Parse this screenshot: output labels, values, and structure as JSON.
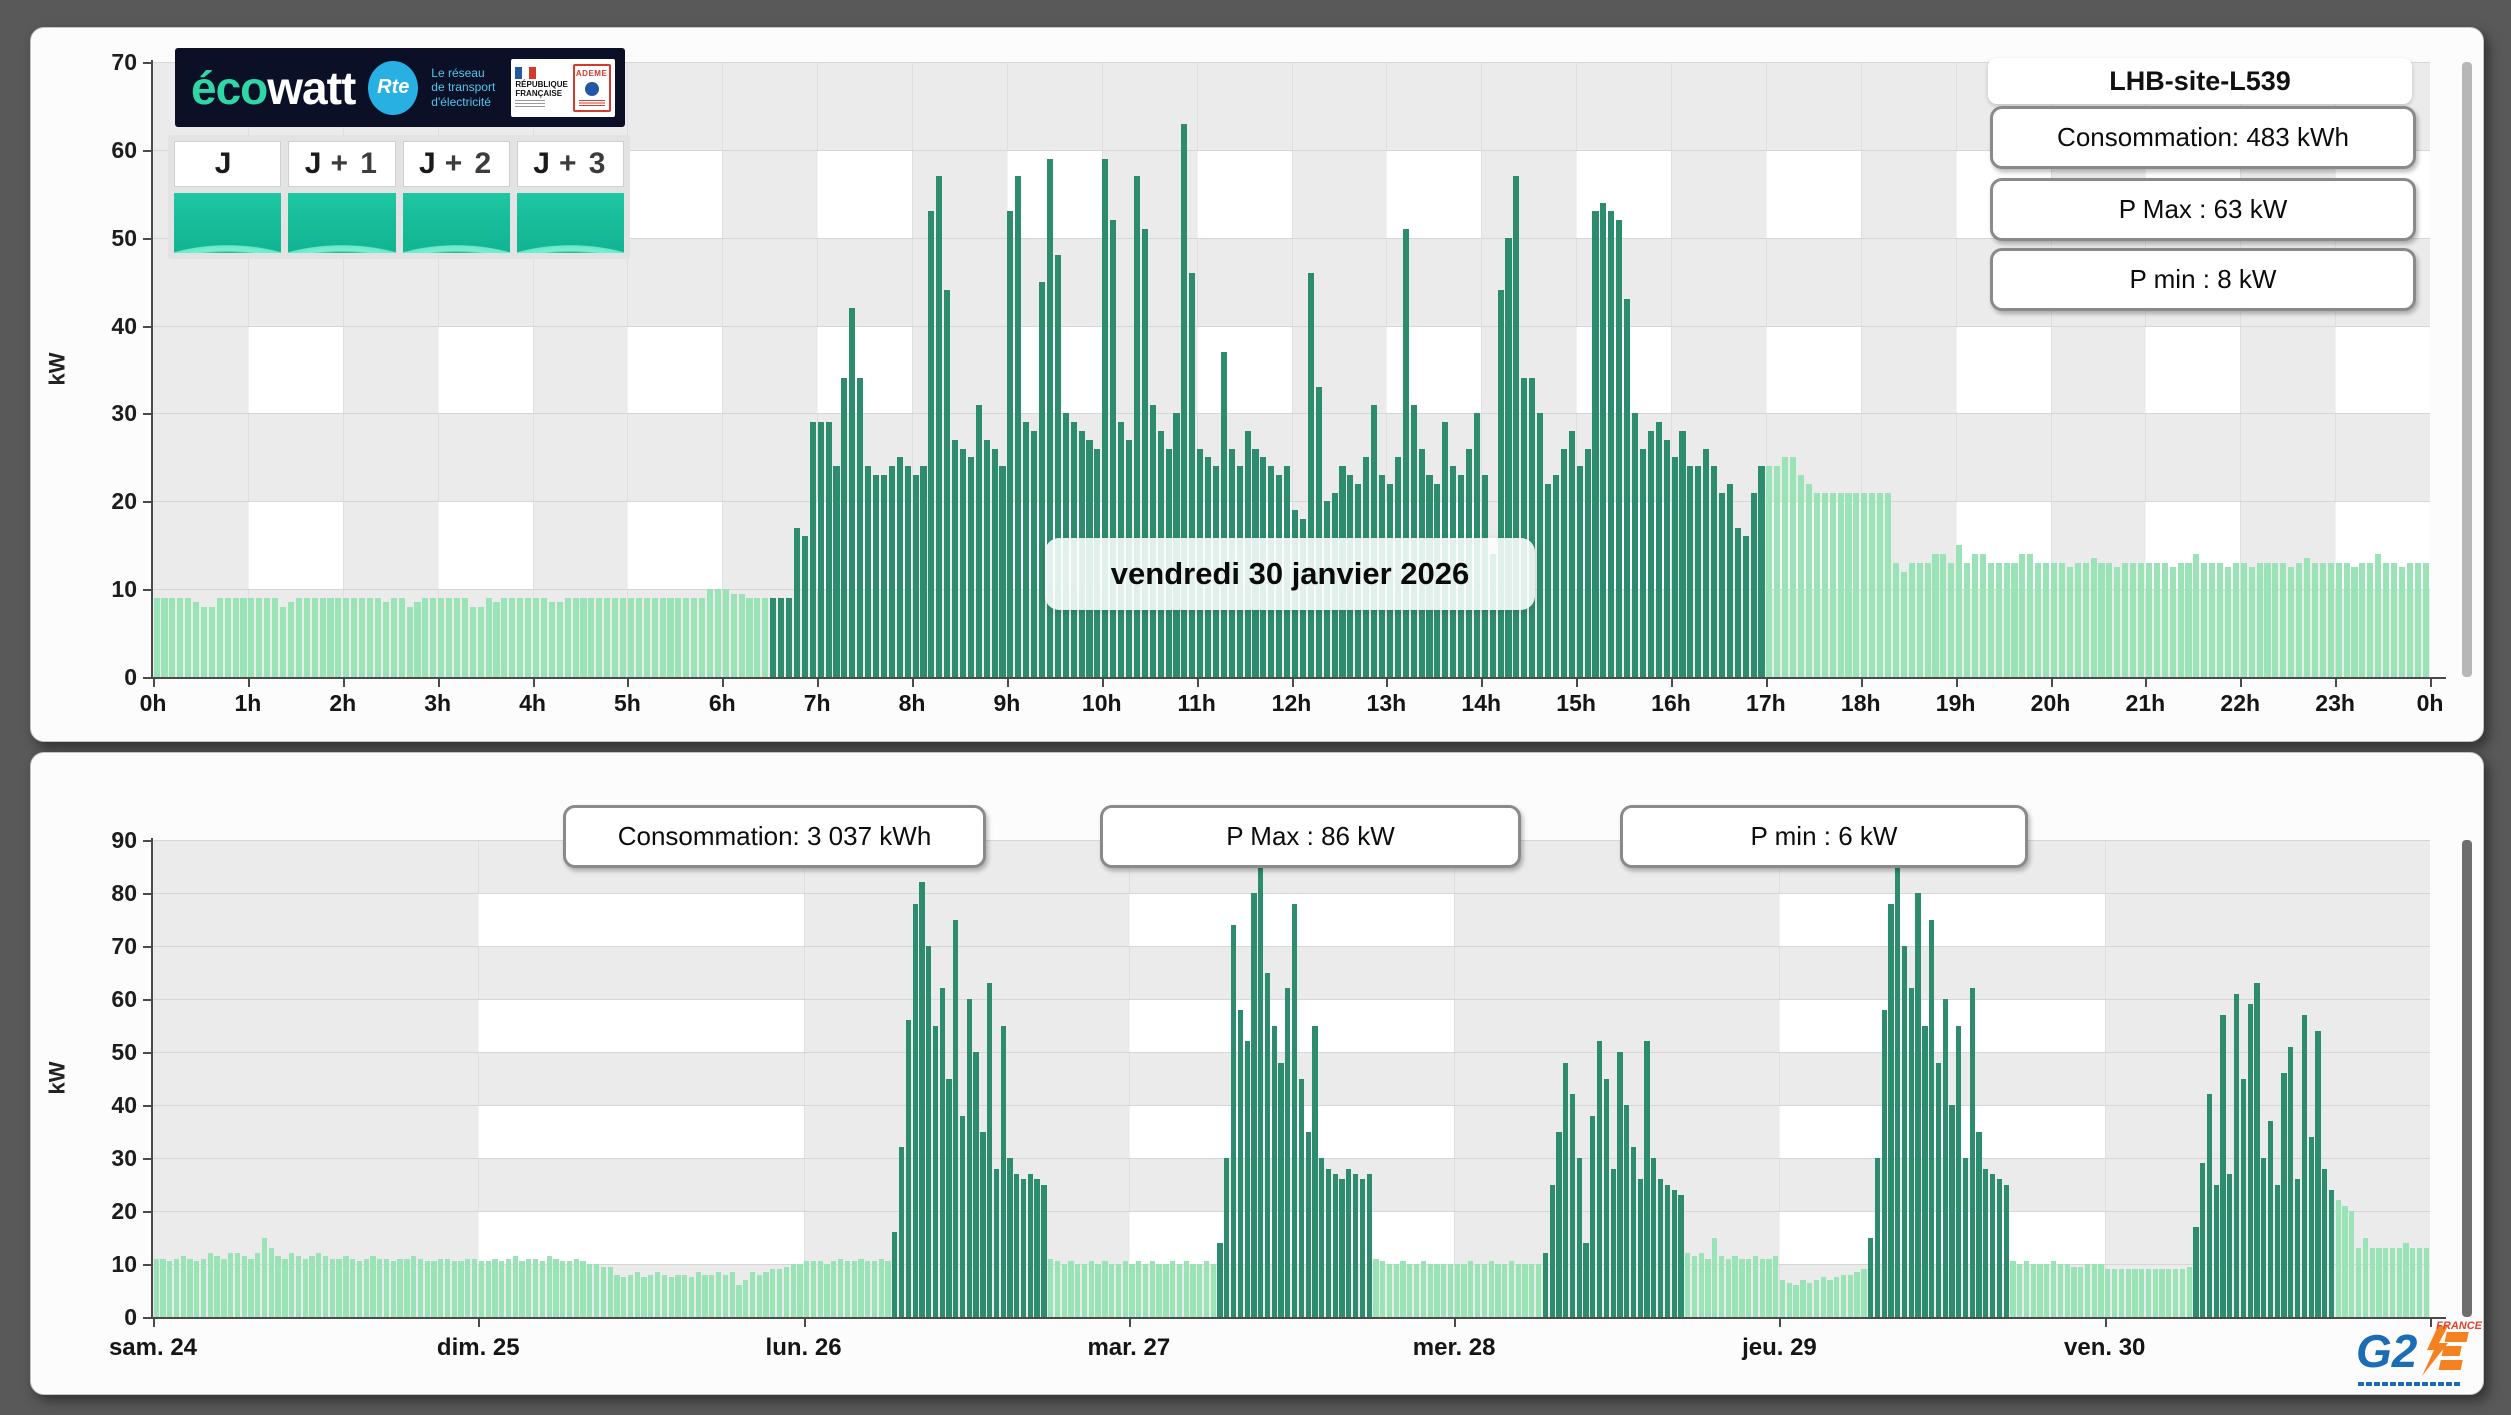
{
  "page": {
    "bg": "#595959"
  },
  "site_title": "LHB-site-L539",
  "logo": {
    "eco": "éco",
    "watt": "watt",
    "rte": "Rte",
    "rte_lines": [
      "Le réseau",
      "de transport",
      "d'électricité"
    ],
    "rf_line1": "RÉPUBLIQUE",
    "rf_line2": "FRANÇAISE",
    "ademe": "ADEME"
  },
  "tiles": [
    {
      "main": "J",
      "suffix": ""
    },
    {
      "main": "J",
      "suffix": "+ 1"
    },
    {
      "main": "J",
      "suffix": "+ 2"
    },
    {
      "main": "J",
      "suffix": "+ 3"
    }
  ],
  "g2e": {
    "g2": "G2",
    "france": "FRANCE"
  },
  "colors": {
    "light_bar": "#99e3b6",
    "dark_bar": "#2e8c6e",
    "plot_bg": "#ebebeb",
    "plot_alt": "#ffffff",
    "grid": "#d6d6d6",
    "vgrid": "rgba(0,0,0,0.05)",
    "axis": "#4a4a4a",
    "scroll_day": "#b7b7b7",
    "scroll_week": "#6e6e6e"
  },
  "chart_data": [
    {
      "type": "bar",
      "title": "LHB-site-L539",
      "date_label": "vendredi 30 janvier 2026",
      "stats": [
        "Consommation: 483 kWh",
        "P Max :  63 kW",
        "P min : 8 kW"
      ],
      "ylabel": "kW",
      "ylim": [
        0,
        70
      ],
      "ystep": 10,
      "x_labels": [
        "0h",
        "1h",
        "2h",
        "3h",
        "4h",
        "5h",
        "6h",
        "7h",
        "8h",
        "9h",
        "10h",
        "11h",
        "12h",
        "13h",
        "14h",
        "15h",
        "16h",
        "17h",
        "18h",
        "19h",
        "20h",
        "21h",
        "22h",
        "23h",
        "0h"
      ],
      "interval_minutes": 5,
      "dark_hours": [
        6.5,
        17
      ],
      "values": [
        [
          9,
          9,
          9,
          9,
          9,
          8.5,
          8,
          8,
          9,
          9,
          9,
          9
        ],
        [
          9,
          9,
          9,
          9,
          8,
          8.5,
          9,
          9,
          9,
          9,
          9,
          9
        ],
        [
          9,
          9,
          9,
          9,
          9,
          8.5,
          9,
          9,
          8,
          8.5,
          9,
          9
        ],
        [
          9,
          9,
          9,
          9,
          8,
          8,
          9,
          8.5,
          9,
          9,
          9,
          9
        ],
        [
          9,
          9,
          8.5,
          8.5,
          9,
          9,
          9,
          9,
          9,
          9,
          9,
          9
        ],
        [
          9,
          9,
          9,
          9,
          9,
          9,
          9,
          9,
          9,
          9,
          10,
          10
        ],
        [
          10,
          9.5,
          9.5,
          9,
          9,
          9,
          9,
          9,
          9,
          17,
          16,
          29
        ],
        [
          29,
          29,
          24,
          34,
          42,
          34,
          24,
          23,
          23,
          24,
          25,
          24
        ],
        [
          23,
          24,
          53,
          57,
          44,
          27,
          26,
          25,
          31,
          27,
          26,
          24
        ],
        [
          53,
          57,
          29,
          28,
          45,
          59,
          48,
          30,
          29,
          28,
          27,
          26
        ],
        [
          59,
          52,
          29,
          27,
          57,
          51,
          31,
          28,
          26,
          30,
          63,
          46
        ],
        [
          26,
          25,
          24,
          37,
          26,
          24,
          28,
          26,
          25,
          24,
          23,
          24
        ],
        [
          19,
          18,
          46,
          33,
          20,
          21,
          24,
          23,
          22,
          25,
          31,
          23
        ],
        [
          22,
          25,
          51,
          31,
          26,
          23,
          22,
          29,
          24,
          23,
          26,
          30
        ],
        [
          23,
          14,
          44,
          50,
          57,
          34,
          34,
          30,
          22,
          23,
          26,
          28
        ],
        [
          24,
          26,
          53,
          54,
          53,
          52,
          43,
          30,
          26,
          28,
          29,
          27
        ],
        [
          25,
          28,
          24,
          24,
          26,
          24,
          21,
          22,
          17,
          16,
          21,
          24
        ],
        [
          24,
          24,
          25,
          25,
          23,
          22,
          21,
          21,
          21,
          21,
          21,
          21
        ],
        [
          21,
          21,
          21,
          21,
          13,
          12,
          13,
          13,
          13,
          14,
          14,
          13
        ],
        [
          15,
          13,
          14,
          14,
          13,
          13,
          13,
          13,
          14,
          14,
          13,
          13
        ],
        [
          13,
          13,
          12.5,
          13,
          13,
          13.5,
          13,
          13,
          12.5,
          13,
          13,
          13
        ],
        [
          13,
          13,
          13,
          12.5,
          13,
          13,
          14,
          13,
          13,
          13,
          12.5,
          13
        ],
        [
          13,
          12.5,
          13,
          13,
          13,
          13,
          12.5,
          13,
          13.5,
          13,
          13,
          13
        ],
        [
          13,
          13,
          12.5,
          13,
          13,
          14,
          13,
          13,
          12.5,
          13,
          13,
          13
        ]
      ]
    },
    {
      "type": "bar",
      "stats": [
        "Consommation: 3 037 kWh",
        "P Max :  86 kW",
        "P min : 6 kW"
      ],
      "ylabel": "kW",
      "ylim": [
        0,
        90
      ],
      "ystep": 10,
      "interval_minutes": 30,
      "days": [
        {
          "label": "sam. 24",
          "dark_hours": null,
          "values": [
            11,
            11,
            10.5,
            11,
            11.5,
            11,
            10.5,
            11,
            12,
            11.5,
            11,
            12,
            12,
            11.5,
            11,
            12,
            15,
            13,
            11.5,
            11,
            12,
            11.5,
            11,
            11.5,
            12,
            11.5,
            11,
            11,
            11.5,
            11,
            10.5,
            11,
            11.5,
            11,
            11,
            10.5,
            11,
            11,
            11.5,
            11,
            10.5,
            10.5,
            11,
            11,
            10.5,
            10.5,
            11,
            11
          ]
        },
        {
          "label": "dim. 25",
          "dark_hours": null,
          "values": [
            10.5,
            10.5,
            11,
            10.5,
            11,
            11.5,
            10.5,
            11,
            11,
            10.5,
            11.5,
            11,
            10.5,
            10.5,
            11,
            10.5,
            10,
            10,
            9.5,
            9.5,
            8,
            7.5,
            8,
            8.5,
            7.5,
            8,
            8.5,
            8,
            7.5,
            8,
            8,
            7.5,
            8.5,
            8,
            8,
            8.5,
            8,
            8.5,
            6,
            7,
            8.5,
            8,
            8.5,
            9,
            9,
            9.5,
            10,
            10
          ]
        },
        {
          "label": "lun. 26",
          "dark_hours": [
            6.5,
            18
          ],
          "values": [
            10.5,
            10.5,
            10.5,
            10,
            10.5,
            11,
            10.5,
            10.5,
            11,
            10.5,
            10.5,
            11,
            10.5,
            16,
            32,
            56,
            78,
            82,
            70,
            55,
            62,
            45,
            75,
            38,
            60,
            50,
            35,
            63,
            28,
            55,
            30,
            27,
            26,
            27,
            26,
            25,
            11,
            10.5,
            10,
            10.5,
            10,
            10,
            10.5,
            10,
            10.5,
            10,
            10,
            10.5
          ]
        },
        {
          "label": "mar. 27",
          "dark_hours": [
            6.5,
            18
          ],
          "values": [
            10,
            10.5,
            10,
            10.5,
            10,
            10,
            10.5,
            10,
            10.5,
            10,
            10,
            10.5,
            10,
            14,
            30,
            74,
            58,
            52,
            80,
            86,
            65,
            55,
            48,
            62,
            78,
            45,
            35,
            55,
            30,
            28,
            27,
            26,
            28,
            27,
            26,
            27,
            11,
            10.5,
            10,
            10,
            10.5,
            10,
            10,
            10.5,
            10,
            10,
            10,
            10
          ]
        },
        {
          "label": "mer. 28",
          "dark_hours": [
            6.5,
            17
          ],
          "values": [
            10,
            10,
            10.5,
            10,
            10,
            10.5,
            10,
            10,
            10.5,
            10,
            10,
            10,
            10,
            12,
            25,
            35,
            48,
            42,
            30,
            14,
            38,
            52,
            45,
            28,
            50,
            40,
            32,
            26,
            52,
            30,
            26,
            25,
            24,
            23,
            12,
            11.5,
            12,
            11,
            15,
            11.5,
            11,
            11.5,
            11,
            11,
            11.5,
            11,
            11,
            11.5
          ]
        },
        {
          "label": "jeu. 29",
          "dark_hours": [
            6.5,
            17
          ],
          "values": [
            7,
            6.5,
            6,
            7,
            6.5,
            7,
            7.5,
            7,
            7.5,
            8,
            8,
            8.5,
            9,
            15,
            30,
            58,
            78,
            86,
            70,
            62,
            80,
            55,
            75,
            48,
            60,
            40,
            55,
            30,
            62,
            35,
            28,
            27,
            26,
            25,
            10.5,
            10,
            10.5,
            10,
            10,
            10,
            10.5,
            10,
            10,
            9.5,
            9.5,
            10,
            10,
            10
          ]
        },
        {
          "label": "ven. 30",
          "dark_hours": [
            6.5,
            17
          ],
          "values": [
            9,
            9,
            9,
            9,
            9,
            9,
            9,
            9,
            9,
            9,
            9,
            9,
            9.5,
            17,
            29,
            42,
            25,
            57,
            27,
            61,
            45,
            59,
            63,
            30,
            37,
            25,
            46,
            51,
            26,
            57,
            34,
            54,
            28,
            24,
            22,
            21,
            20,
            13,
            15,
            13,
            13,
            13,
            13,
            13,
            14,
            13,
            13,
            13
          ]
        }
      ]
    }
  ]
}
